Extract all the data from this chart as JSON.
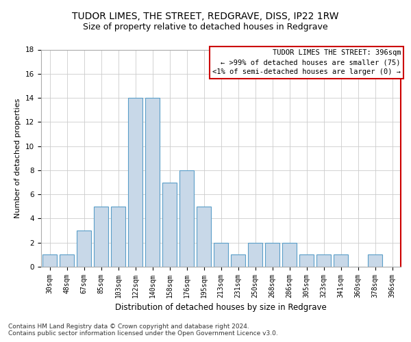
{
  "title1": "TUDOR LIMES, THE STREET, REDGRAVE, DISS, IP22 1RW",
  "title2": "Size of property relative to detached houses in Redgrave",
  "xlabel": "Distribution of detached houses by size in Redgrave",
  "ylabel": "Number of detached properties",
  "bin_labels": [
    "30sqm",
    "48sqm",
    "67sqm",
    "85sqm",
    "103sqm",
    "122sqm",
    "140sqm",
    "158sqm",
    "176sqm",
    "195sqm",
    "213sqm",
    "231sqm",
    "250sqm",
    "268sqm",
    "286sqm",
    "305sqm",
    "323sqm",
    "341sqm",
    "360sqm",
    "378sqm",
    "396sqm"
  ],
  "values": [
    1,
    1,
    3,
    5,
    5,
    14,
    14,
    7,
    8,
    5,
    2,
    1,
    2,
    2,
    2,
    1,
    1,
    1,
    0,
    1,
    0
  ],
  "bar_color": "#c8d8e8",
  "bar_edge_color": "#5a9ec8",
  "grid_color": "#cccccc",
  "ylim": [
    0,
    18
  ],
  "yticks": [
    0,
    2,
    4,
    6,
    8,
    10,
    12,
    14,
    16,
    18
  ],
  "legend_title": "TUDOR LIMES THE STREET: 396sqm",
  "legend_line1": "← >99% of detached houses are smaller (75)",
  "legend_line2": "<1% of semi-detached houses are larger (0) →",
  "red_color": "#cc0000",
  "footer1": "Contains HM Land Registry data © Crown copyright and database right 2024.",
  "footer2": "Contains public sector information licensed under the Open Government Licence v3.0.",
  "title1_fontsize": 10,
  "title2_fontsize": 9,
  "xlabel_fontsize": 8.5,
  "ylabel_fontsize": 8,
  "tick_fontsize": 7,
  "legend_fontsize": 7.5,
  "footer_fontsize": 6.5
}
